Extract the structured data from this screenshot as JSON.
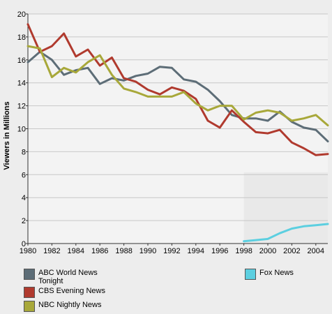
{
  "chart_data": {
    "type": "line",
    "title": "",
    "xlabel": "",
    "ylabel": "Viewers in Millions",
    "xlim": [
      1980,
      2005
    ],
    "ylim": [
      0,
      20
    ],
    "x_ticks": [
      "1980",
      "1982",
      "1984",
      "1986",
      "1988",
      "1990",
      "1992",
      "1994",
      "1996",
      "1998",
      "2000",
      "2002",
      "2004"
    ],
    "y_ticks": [
      "0",
      "2",
      "4",
      "6",
      "8",
      "10",
      "12",
      "14",
      "16",
      "18",
      "20"
    ],
    "grid": true,
    "legend_position": "bottom",
    "series": [
      {
        "name": "ABC World News Tonight",
        "color": "#5d6d77",
        "x": [
          1980,
          1981,
          1982,
          1983,
          1984,
          1985,
          1986,
          1987,
          1988,
          1989,
          1990,
          1991,
          1992,
          1993,
          1994,
          1995,
          1996,
          1997,
          1998,
          1999,
          2000,
          2001,
          2002,
          2003,
          2004,
          2005
        ],
        "values": [
          15.8,
          16.7,
          16.0,
          14.7,
          15.1,
          15.3,
          13.9,
          14.4,
          14.2,
          14.6,
          14.8,
          15.4,
          15.3,
          14.3,
          14.1,
          13.4,
          12.4,
          11.2,
          10.9,
          10.9,
          10.7,
          11.5,
          10.6,
          10.1,
          9.9,
          8.9
        ]
      },
      {
        "name": "CBS Evening News",
        "color": "#b03a2e",
        "x": [
          1980,
          1981,
          1982,
          1983,
          1984,
          1985,
          1986,
          1987,
          1988,
          1989,
          1990,
          1991,
          1992,
          1993,
          1994,
          1995,
          1996,
          1997,
          1998,
          1999,
          2000,
          2001,
          2002,
          2003,
          2004,
          2005
        ],
        "values": [
          19.1,
          16.7,
          17.2,
          18.3,
          16.3,
          16.9,
          15.5,
          16.2,
          14.4,
          14.1,
          13.4,
          13.0,
          13.6,
          13.3,
          12.6,
          10.7,
          10.1,
          11.6,
          10.6,
          9.7,
          9.6,
          9.9,
          8.8,
          8.3,
          7.7,
          7.8
        ]
      },
      {
        "name": "NBC Nightly News",
        "color": "#a8a83a",
        "x": [
          1980,
          1981,
          1982,
          1983,
          1984,
          1985,
          1986,
          1987,
          1988,
          1989,
          1990,
          1991,
          1992,
          1993,
          1994,
          1995,
          1996,
          1997,
          1998,
          1999,
          2000,
          2001,
          2002,
          2003,
          2004,
          2005
        ],
        "values": [
          17.2,
          17.0,
          14.5,
          15.3,
          14.9,
          15.8,
          16.4,
          14.7,
          13.5,
          13.2,
          12.8,
          12.8,
          12.8,
          13.2,
          12.2,
          11.6,
          12.0,
          12.0,
          10.8,
          11.4,
          11.6,
          11.4,
          10.7,
          10.9,
          11.2,
          10.3
        ]
      },
      {
        "name": "Fox News",
        "color": "#5ccfe0",
        "x": [
          1998,
          1999,
          2000,
          2001,
          2002,
          2003,
          2004,
          2005
        ],
        "values": [
          0.2,
          0.3,
          0.4,
          0.9,
          1.3,
          1.5,
          1.6,
          1.7
        ]
      }
    ]
  }
}
